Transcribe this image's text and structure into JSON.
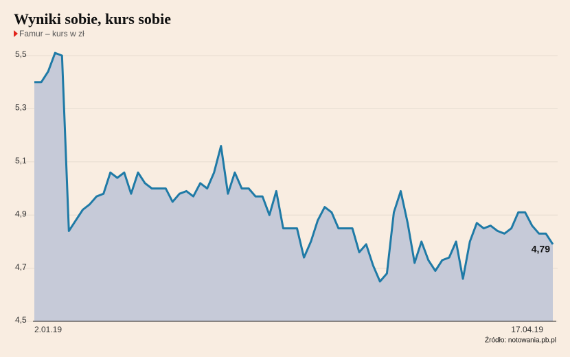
{
  "chart_data": {
    "type": "area",
    "title": "Wyniki sobie, kurs sobie",
    "subtitle": "Famur – kurs w zł",
    "source": "Źródło: notowania.pb.pl",
    "categories": [
      "2.01.19",
      null,
      null,
      null,
      null,
      null,
      null,
      null,
      null,
      null,
      null,
      null,
      null,
      null,
      null,
      null,
      null,
      null,
      null,
      null,
      null,
      null,
      null,
      null,
      null,
      null,
      null,
      null,
      null,
      null,
      null,
      null,
      null,
      null,
      null,
      null,
      null,
      null,
      null,
      null,
      null,
      null,
      null,
      null,
      null,
      null,
      null,
      null,
      null,
      null,
      null,
      null,
      null,
      null,
      null,
      null,
      null,
      null,
      null,
      null,
      null,
      null,
      null,
      null,
      null,
      null,
      null,
      null,
      null,
      null,
      null,
      null,
      null,
      null,
      null,
      "17.04.19"
    ],
    "values": [
      5.4,
      5.4,
      5.44,
      5.51,
      5.5,
      4.84,
      4.88,
      4.92,
      4.94,
      4.97,
      4.98,
      5.06,
      5.04,
      5.06,
      4.98,
      5.06,
      5.02,
      5.0,
      5.0,
      5.0,
      4.95,
      4.98,
      4.99,
      4.97,
      5.02,
      5.0,
      5.06,
      5.16,
      4.98,
      5.06,
      5.0,
      5.0,
      4.97,
      4.97,
      4.9,
      4.99,
      4.85,
      4.85,
      4.85,
      4.74,
      4.8,
      4.88,
      4.93,
      4.91,
      4.85,
      4.85,
      4.85,
      4.76,
      4.79,
      4.71,
      4.65,
      4.68,
      4.91,
      4.99,
      4.87,
      4.72,
      4.8,
      4.73,
      4.69,
      4.73,
      4.74,
      4.8,
      4.66,
      4.8,
      4.87,
      4.85,
      4.86,
      4.84,
      4.83,
      4.85,
      4.91,
      4.91,
      4.86,
      4.83,
      4.83,
      4.79
    ],
    "value_labels": [
      null,
      null,
      null,
      null,
      null,
      null,
      null,
      null,
      null,
      null,
      null,
      null,
      null,
      null,
      null,
      null,
      null,
      null,
      null,
      null,
      null,
      null,
      null,
      null,
      null,
      null,
      null,
      null,
      null,
      null,
      null,
      null,
      null,
      null,
      null,
      null,
      null,
      null,
      null,
      null,
      null,
      null,
      null,
      null,
      null,
      null,
      null,
      null,
      null,
      null,
      null,
      null,
      null,
      null,
      null,
      null,
      null,
      null,
      null,
      null,
      null,
      null,
      null,
      null,
      null,
      null,
      null,
      null,
      null,
      null,
      null,
      null,
      null,
      null,
      null,
      "4,79"
    ],
    "color": "#1f7aa6",
    "fill": "#c6cad8",
    "ylim": [
      4.5,
      5.53
    ],
    "yticks": [
      {
        "value": 4.5,
        "label": "4,5"
      },
      {
        "value": 4.7,
        "label": "4,7"
      },
      {
        "value": 4.9,
        "label": "4,9"
      },
      {
        "value": 5.1,
        "label": "5,1"
      },
      {
        "value": 5.3,
        "label": "5,3"
      },
      {
        "value": 5.5,
        "label": "5,5"
      }
    ],
    "grid": true
  }
}
